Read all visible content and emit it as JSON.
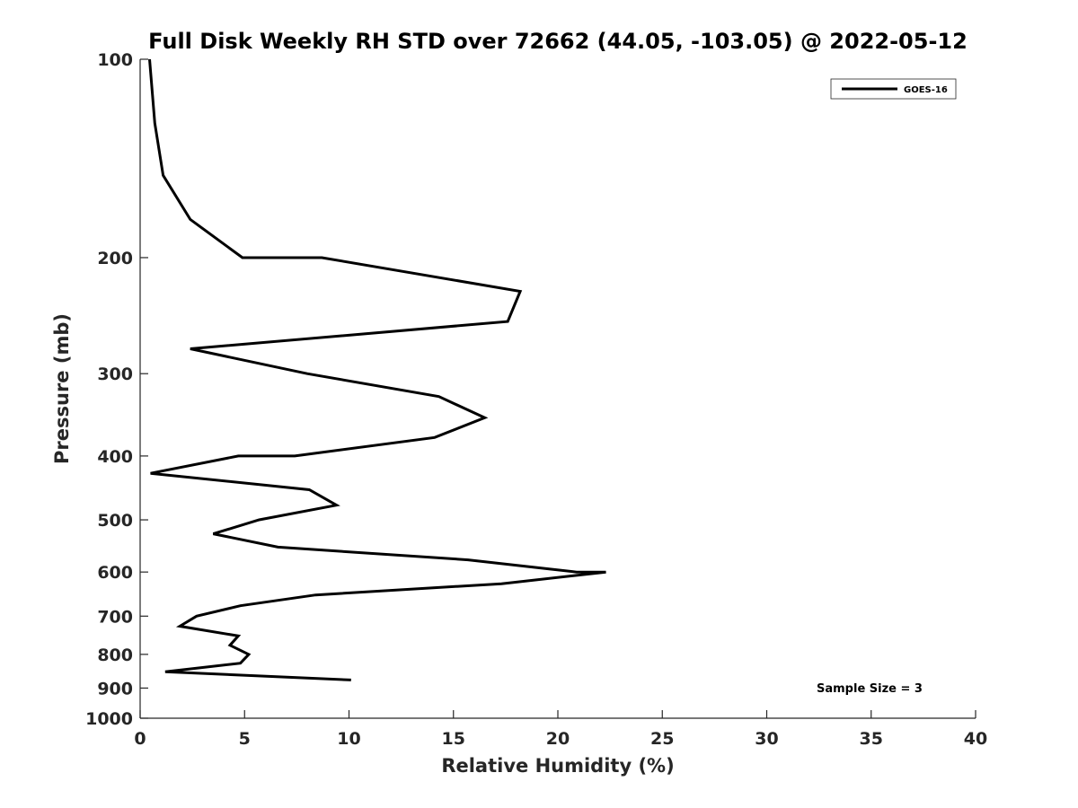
{
  "chart_data": {
    "type": "line",
    "title": "Full Disk Weekly RH STD over 72662 (44.05, -103.05) @ 2022-05-12",
    "xlabel": "Relative Humidity (%)",
    "ylabel": "Pressure (mb)",
    "xlim": [
      0,
      40
    ],
    "ylim": [
      100,
      1000
    ],
    "y_scale": "log",
    "y_reversed": true,
    "grid": false,
    "x_ticks": [
      "0",
      "5",
      "10",
      "15",
      "20",
      "25",
      "30",
      "35",
      "40"
    ],
    "y_ticks": [
      "100",
      "200",
      "300",
      "400",
      "500",
      "600",
      "700",
      "800",
      "900",
      "1000"
    ],
    "legend": {
      "position": "top-right",
      "entries": [
        "GOES-16"
      ]
    },
    "annotation": "Sample Size = 3",
    "series": [
      {
        "name": "GOES-16",
        "color": "#000000",
        "points": [
          [
            0.45,
            100
          ],
          [
            0.7,
            125
          ],
          [
            1.1,
            150
          ],
          [
            2.4,
            175
          ],
          [
            4.9,
            200
          ],
          [
            8.7,
            200
          ],
          [
            18.2,
            225
          ],
          [
            17.6,
            250
          ],
          [
            2.4,
            275
          ],
          [
            8.0,
            300
          ],
          [
            14.3,
            325
          ],
          [
            16.5,
            350
          ],
          [
            14.1,
            375
          ],
          [
            7.4,
            400
          ],
          [
            4.7,
            400
          ],
          [
            0.5,
            425
          ],
          [
            8.1,
            450
          ],
          [
            9.4,
            475
          ],
          [
            5.7,
            500
          ],
          [
            3.5,
            525
          ],
          [
            6.6,
            550
          ],
          [
            15.7,
            575
          ],
          [
            20.9,
            600
          ],
          [
            22.3,
            600
          ],
          [
            17.3,
            625
          ],
          [
            8.4,
            650
          ],
          [
            4.8,
            675
          ],
          [
            2.7,
            700
          ],
          [
            1.9,
            725
          ],
          [
            4.7,
            750
          ],
          [
            4.3,
            775
          ],
          [
            5.2,
            800
          ],
          [
            4.8,
            825
          ],
          [
            1.2,
            850
          ],
          [
            10.1,
            875
          ]
        ]
      }
    ]
  }
}
